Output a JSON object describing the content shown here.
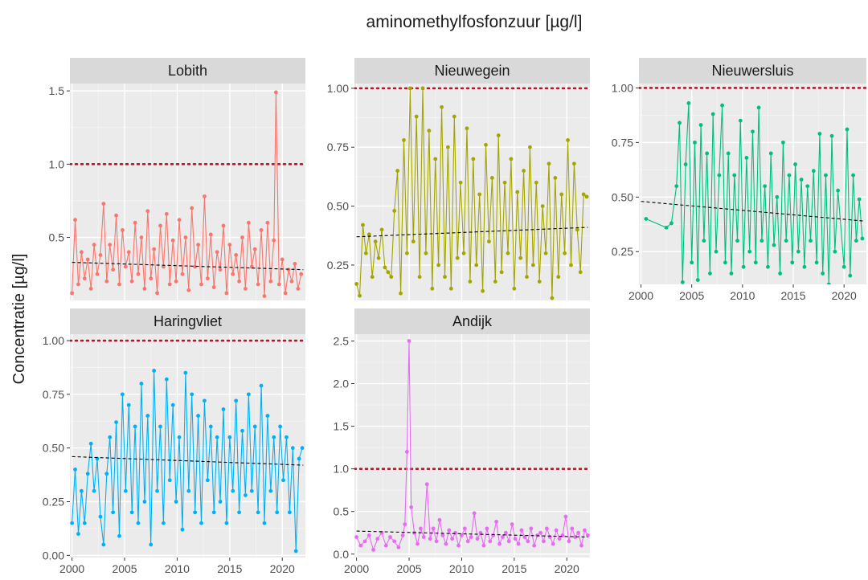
{
  "chart_data": {
    "type": "line",
    "title": "aminomethylfosfonzuur [µg/l]",
    "xlabel": "",
    "ylabel": "Concentratie [µg/l]",
    "x_ticks": [
      2000,
      2005,
      2010,
      2015,
      2020
    ],
    "xlim": [
      1999.8,
      2022.2
    ],
    "threshold": 1.0,
    "threshold_color": "#b2182b",
    "trend_color": "#000000",
    "panel_bg": "#ebebeb",
    "strip_bg": "#d9d9d9",
    "grid": true,
    "panels": [
      {
        "name": "Lobith",
        "color": "#f8766d",
        "ylim": [
          0.07,
          1.55
        ],
        "y_ticks": [
          0.5,
          1.0,
          1.5
        ],
        "y_tick_labels": [
          "0.5",
          "1.0",
          "1.5"
        ],
        "show_x_axis": false,
        "trend": {
          "x": [
            2000.0,
            2022.0
          ],
          "y": [
            0.33,
            0.28
          ]
        },
        "series": {
          "x": [
            2000.0,
            2000.3,
            2000.6,
            2000.9,
            2001.2,
            2001.5,
            2001.8,
            2002.1,
            2002.4,
            2002.7,
            2003.0,
            2003.3,
            2003.6,
            2003.9,
            2004.2,
            2004.5,
            2004.8,
            2005.1,
            2005.4,
            2005.7,
            2006.0,
            2006.3,
            2006.6,
            2006.9,
            2007.2,
            2007.5,
            2007.8,
            2008.1,
            2008.4,
            2008.7,
            2009.0,
            2009.3,
            2009.6,
            2009.9,
            2010.2,
            2010.5,
            2010.8,
            2011.1,
            2011.4,
            2011.7,
            2012.0,
            2012.3,
            2012.6,
            2012.9,
            2013.2,
            2013.5,
            2013.8,
            2014.1,
            2014.4,
            2014.7,
            2015.0,
            2015.3,
            2015.6,
            2015.9,
            2016.2,
            2016.5,
            2016.8,
            2017.1,
            2017.4,
            2017.7,
            2018.0,
            2018.3,
            2018.6,
            2018.9,
            2019.2,
            2019.4,
            2019.7,
            2020.0,
            2020.3,
            2020.6,
            2020.9,
            2021.2,
            2021.5,
            2021.8
          ],
          "y": [
            0.12,
            0.62,
            0.18,
            0.4,
            0.22,
            0.35,
            0.15,
            0.45,
            0.25,
            0.38,
            0.73,
            0.2,
            0.45,
            0.28,
            0.65,
            0.18,
            0.55,
            0.3,
            0.4,
            0.2,
            0.6,
            0.25,
            0.5,
            0.15,
            0.68,
            0.22,
            0.42,
            0.12,
            0.58,
            0.3,
            0.66,
            0.18,
            0.48,
            0.2,
            0.62,
            0.25,
            0.5,
            0.14,
            0.7,
            0.3,
            0.45,
            0.18,
            0.78,
            0.22,
            0.52,
            0.16,
            0.4,
            0.28,
            0.58,
            0.12,
            0.45,
            0.25,
            0.38,
            0.2,
            0.5,
            0.15,
            0.6,
            0.3,
            0.42,
            0.18,
            0.55,
            0.1,
            0.6,
            0.2,
            0.48,
            1.49,
            0.18,
            0.35,
            0.12,
            0.28,
            0.2,
            0.32,
            0.15,
            0.25
          ]
        }
      },
      {
        "name": "Nieuwegein",
        "color": "#a3a500",
        "ylim": [
          0.1,
          1.02
        ],
        "y_ticks": [
          0.25,
          0.5,
          0.75,
          1.0
        ],
        "y_tick_labels": [
          "0.25",
          "0.50",
          "0.75",
          "1.00"
        ],
        "show_x_axis": false,
        "trend": {
          "x": [
            2000.0,
            2022.0
          ],
          "y": [
            0.37,
            0.41
          ]
        },
        "series": {
          "x": [
            2000.0,
            2000.3,
            2000.6,
            2000.9,
            2001.2,
            2001.5,
            2001.8,
            2002.1,
            2002.4,
            2002.7,
            2003.0,
            2003.3,
            2003.6,
            2003.9,
            2004.2,
            2004.5,
            2004.8,
            2005.1,
            2005.4,
            2005.7,
            2006.0,
            2006.3,
            2006.6,
            2006.9,
            2007.2,
            2007.5,
            2007.8,
            2008.1,
            2008.4,
            2008.7,
            2009.0,
            2009.3,
            2009.6,
            2009.9,
            2010.2,
            2010.5,
            2010.8,
            2011.1,
            2011.4,
            2011.7,
            2012.0,
            2012.3,
            2012.6,
            2012.9,
            2013.2,
            2013.5,
            2013.8,
            2014.1,
            2014.4,
            2014.7,
            2015.0,
            2015.3,
            2015.6,
            2015.9,
            2016.2,
            2016.5,
            2016.8,
            2017.1,
            2017.4,
            2017.7,
            2018.0,
            2018.3,
            2018.6,
            2018.9,
            2019.2,
            2019.5,
            2019.8,
            2020.1,
            2020.4,
            2020.7,
            2021.0,
            2021.3,
            2021.6,
            2021.9
          ],
          "y": [
            0.17,
            0.12,
            0.42,
            0.3,
            0.38,
            0.2,
            0.35,
            0.28,
            0.4,
            0.24,
            0.22,
            0.2,
            0.48,
            0.65,
            0.13,
            0.78,
            0.3,
            1.0,
            0.35,
            0.88,
            0.2,
            1.0,
            0.3,
            0.82,
            0.15,
            0.7,
            0.25,
            0.92,
            0.2,
            0.75,
            0.15,
            0.88,
            0.28,
            0.6,
            0.3,
            0.83,
            0.18,
            0.7,
            0.25,
            0.55,
            0.14,
            0.76,
            0.35,
            0.62,
            0.18,
            0.8,
            0.22,
            0.6,
            0.3,
            0.7,
            0.15,
            0.56,
            0.28,
            0.65,
            0.2,
            0.75,
            0.25,
            0.6,
            0.18,
            0.5,
            0.3,
            0.68,
            0.11,
            0.62,
            0.2,
            0.55,
            0.3,
            0.78,
            0.25,
            0.68,
            0.4,
            0.22,
            0.55,
            0.54
          ]
        }
      },
      {
        "name": "Nieuwersluis",
        "color": "#00bf7d",
        "ylim": [
          0.1,
          1.02
        ],
        "y_ticks": [
          0.25,
          0.5,
          0.75,
          1.0
        ],
        "y_tick_labels": [
          "0.25",
          "0.50",
          "0.75",
          "1.00"
        ],
        "show_x_axis": true,
        "trend": {
          "x": [
            2000.0,
            2022.0
          ],
          "y": [
            0.48,
            0.39
          ]
        },
        "series": {
          "x": [
            2000.5,
            2002.5,
            2003.0,
            2003.5,
            2003.8,
            2004.1,
            2004.4,
            2004.7,
            2005.0,
            2005.3,
            2005.6,
            2005.9,
            2006.2,
            2006.5,
            2006.8,
            2007.1,
            2007.4,
            2007.7,
            2008.0,
            2008.3,
            2008.6,
            2008.9,
            2009.2,
            2009.5,
            2009.8,
            2010.1,
            2010.4,
            2010.7,
            2011.0,
            2011.3,
            2011.6,
            2011.9,
            2012.2,
            2012.5,
            2012.8,
            2013.1,
            2013.4,
            2013.7,
            2014.0,
            2014.3,
            2014.6,
            2014.9,
            2015.2,
            2015.5,
            2015.8,
            2016.1,
            2016.4,
            2016.7,
            2017.0,
            2017.3,
            2017.6,
            2017.9,
            2018.2,
            2018.5,
            2018.8,
            2019.1,
            2019.4,
            2020.0,
            2020.3,
            2020.6,
            2020.9,
            2021.2,
            2021.5,
            2021.8
          ],
          "y": [
            0.4,
            0.36,
            0.38,
            0.55,
            0.84,
            0.11,
            0.65,
            0.93,
            0.2,
            0.75,
            0.12,
            0.83,
            0.3,
            0.7,
            0.15,
            0.88,
            0.25,
            0.6,
            0.92,
            0.2,
            0.7,
            0.15,
            0.6,
            0.3,
            0.85,
            0.18,
            0.68,
            0.25,
            0.8,
            0.2,
            0.91,
            0.3,
            0.55,
            0.18,
            0.7,
            0.28,
            0.5,
            0.15,
            0.75,
            0.3,
            0.6,
            0.2,
            0.65,
            0.25,
            0.58,
            0.18,
            0.55,
            0.3,
            0.62,
            0.2,
            0.79,
            0.15,
            0.6,
            0.1,
            0.78,
            0.25,
            0.53,
            0.18,
            0.81,
            0.14,
            0.6,
            0.3,
            0.49,
            0.31
          ]
        }
      },
      {
        "name": "Haringvliet",
        "color": "#00b0f6",
        "ylim": [
          -0.01,
          1.03
        ],
        "y_ticks": [
          0.0,
          0.25,
          0.5,
          0.75,
          1.0
        ],
        "y_tick_labels": [
          "0.00",
          "0.25",
          "0.50",
          "0.75",
          "1.00"
        ],
        "show_x_axis": true,
        "trend": {
          "x": [
            2000.0,
            2022.0
          ],
          "y": [
            0.46,
            0.42
          ]
        },
        "series": {
          "x": [
            2000.0,
            2000.3,
            2000.6,
            2000.9,
            2001.2,
            2001.5,
            2001.8,
            2002.1,
            2002.4,
            2002.7,
            2003.0,
            2003.3,
            2003.6,
            2003.9,
            2004.2,
            2004.5,
            2004.8,
            2005.1,
            2005.4,
            2005.7,
            2006.0,
            2006.3,
            2006.6,
            2006.9,
            2007.2,
            2007.5,
            2007.8,
            2008.1,
            2008.4,
            2008.7,
            2009.0,
            2009.3,
            2009.6,
            2009.9,
            2010.2,
            2010.5,
            2010.8,
            2011.1,
            2011.4,
            2011.7,
            2012.0,
            2012.3,
            2012.6,
            2012.9,
            2013.2,
            2013.5,
            2013.8,
            2014.1,
            2014.4,
            2014.7,
            2015.0,
            2015.3,
            2015.6,
            2015.9,
            2016.2,
            2016.5,
            2016.8,
            2017.1,
            2017.4,
            2017.7,
            2018.0,
            2018.3,
            2018.6,
            2018.9,
            2019.2,
            2019.5,
            2019.8,
            2020.1,
            2020.4,
            2020.7,
            2021.0,
            2021.3,
            2021.6,
            2021.9
          ],
          "y": [
            0.15,
            0.4,
            0.1,
            0.3,
            0.15,
            0.38,
            0.52,
            0.3,
            0.45,
            0.18,
            0.05,
            0.38,
            0.55,
            0.2,
            0.62,
            0.09,
            0.75,
            0.3,
            0.7,
            0.2,
            0.6,
            0.15,
            0.8,
            0.25,
            0.65,
            0.05,
            0.86,
            0.3,
            0.6,
            0.15,
            0.82,
            0.35,
            0.7,
            0.25,
            0.55,
            0.12,
            0.85,
            0.3,
            0.75,
            0.2,
            0.65,
            0.15,
            0.72,
            0.35,
            0.6,
            0.2,
            0.55,
            0.25,
            0.68,
            0.15,
            0.55,
            0.3,
            0.72,
            0.2,
            0.58,
            0.28,
            0.75,
            0.3,
            0.6,
            0.2,
            0.79,
            0.15,
            0.65,
            0.3,
            0.55,
            0.2,
            0.6,
            0.35,
            0.55,
            0.2,
            0.5,
            0.02,
            0.45,
            0.5
          ]
        }
      },
      {
        "name": "Andijk",
        "color": "#e76bf3",
        "ylim": [
          -0.04,
          2.58
        ],
        "y_ticks": [
          0.0,
          0.5,
          1.0,
          1.5,
          2.0,
          2.5
        ],
        "y_tick_labels": [
          "0.0",
          "0.5",
          "1.0",
          "1.5",
          "2.0",
          "2.5"
        ],
        "show_x_axis": true,
        "trend": {
          "x": [
            2000.0,
            2022.0
          ],
          "y": [
            0.27,
            0.2
          ]
        },
        "series": {
          "x": [
            2000.0,
            2000.4,
            2000.8,
            2001.2,
            2001.6,
            2002.0,
            2002.4,
            2002.8,
            2003.2,
            2003.6,
            2004.0,
            2004.4,
            2004.6,
            2004.8,
            2005.0,
            2005.2,
            2005.5,
            2005.8,
            2006.1,
            2006.4,
            2006.7,
            2007.0,
            2007.3,
            2007.6,
            2007.9,
            2008.2,
            2008.5,
            2008.8,
            2009.1,
            2009.4,
            2009.7,
            2010.0,
            2010.3,
            2010.6,
            2010.9,
            2011.2,
            2011.5,
            2011.8,
            2012.1,
            2012.4,
            2012.7,
            2013.0,
            2013.3,
            2013.6,
            2013.9,
            2014.2,
            2014.5,
            2014.8,
            2015.1,
            2015.4,
            2015.7,
            2016.0,
            2016.3,
            2016.6,
            2016.9,
            2017.2,
            2017.5,
            2017.8,
            2018.1,
            2018.4,
            2018.7,
            2019.0,
            2019.3,
            2019.6,
            2019.9,
            2020.2,
            2020.5,
            2020.8,
            2021.1,
            2021.4,
            2021.7,
            2022.0
          ],
          "y": [
            0.2,
            0.1,
            0.15,
            0.22,
            0.05,
            0.18,
            0.25,
            0.1,
            0.2,
            0.15,
            0.08,
            0.22,
            0.35,
            1.2,
            2.5,
            0.55,
            0.25,
            0.12,
            0.3,
            0.2,
            0.82,
            0.18,
            0.3,
            0.15,
            0.4,
            0.22,
            0.12,
            0.28,
            0.18,
            0.25,
            0.1,
            0.22,
            0.3,
            0.15,
            0.2,
            0.48,
            0.18,
            0.25,
            0.1,
            0.3,
            0.15,
            0.22,
            0.38,
            0.12,
            0.2,
            0.25,
            0.15,
            0.35,
            0.18,
            0.12,
            0.28,
            0.2,
            0.15,
            0.3,
            0.1,
            0.22,
            0.25,
            0.15,
            0.3,
            0.2,
            0.12,
            0.28,
            0.18,
            0.22,
            0.44,
            0.15,
            0.3,
            0.2,
            0.25,
            0.1,
            0.28,
            0.22
          ]
        }
      }
    ]
  }
}
